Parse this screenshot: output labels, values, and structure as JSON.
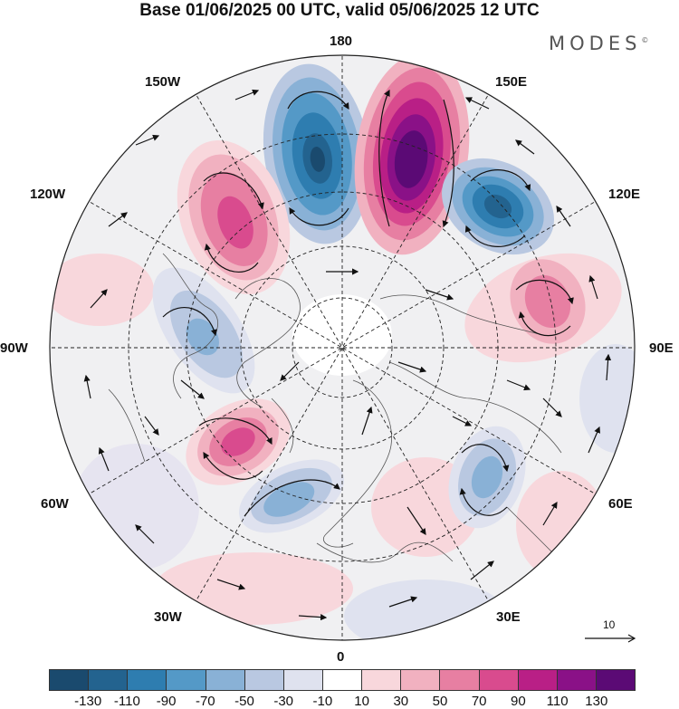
{
  "title": "Base 01/06/2025 00 UTC, valid 05/06/2025 12 UTC",
  "brand": "MODES",
  "brand_mark": "©",
  "lon_labels": {
    "top": "180",
    "top_right": "150E",
    "right_upper": "120E",
    "right": "90E",
    "right_lower": "60E",
    "bottom_right": "30E",
    "bottom": "0",
    "bottom_left": "30W",
    "left_lower": "60W",
    "left": "90W",
    "left_upper": "120W",
    "top_left": "150W"
  },
  "reference_vector": "10",
  "colorbar": {
    "colors": [
      "#1a4a6e",
      "#23638f",
      "#2e7db0",
      "#5499c7",
      "#89b1d6",
      "#b9c8e1",
      "#dfe2ef",
      "#ffffff",
      "#f8d7dc",
      "#f1b1c0",
      "#e77fa2",
      "#d94b8e",
      "#b91f86",
      "#8a1187",
      "#5b0a75"
    ],
    "tick_labels": [
      "-130",
      "-110",
      "-90",
      "-70",
      "-50",
      "-30",
      "-10",
      "10",
      "30",
      "50",
      "70",
      "90",
      "110",
      "130"
    ]
  },
  "anomaly_centers": [
    {
      "sign": "negative",
      "level": -130,
      "lon": "170W"
    },
    {
      "sign": "positive",
      "level": 130,
      "lon": "165E"
    },
    {
      "sign": "negative",
      "level": -110,
      "lon": "135E"
    },
    {
      "sign": "positive",
      "level": 90,
      "lon": "140W"
    },
    {
      "sign": "positive",
      "level": 50,
      "lon": "105E"
    },
    {
      "sign": "negative",
      "level": -50,
      "lon": "100W"
    },
    {
      "sign": "positive",
      "level": 90,
      "lon": "55W"
    },
    {
      "sign": "negative",
      "level": -50,
      "lon": "25W"
    },
    {
      "sign": "negative",
      "level": -50,
      "lon": "45E"
    }
  ]
}
